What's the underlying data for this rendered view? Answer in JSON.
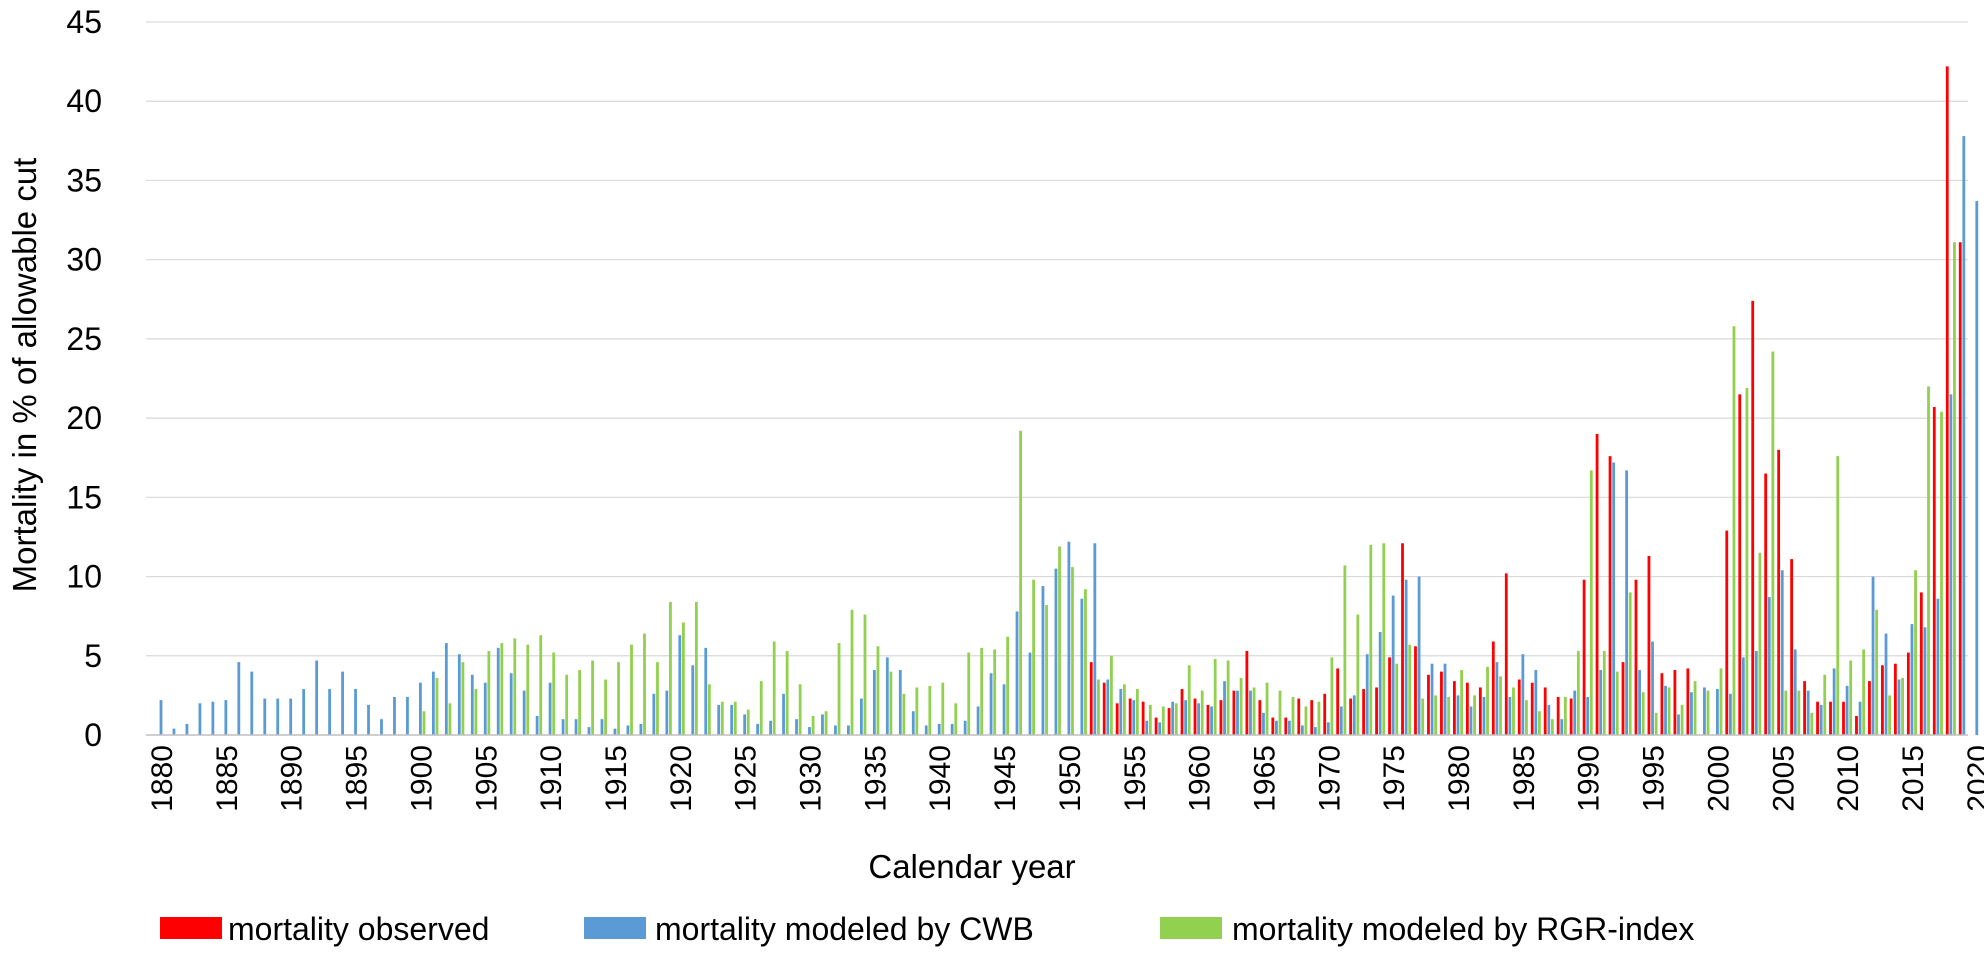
{
  "chart_data": {
    "type": "bar",
    "title": "",
    "xlabel": "Calendar year",
    "ylabel": "Mortality in % of allowable cut",
    "ylim": [
      0,
      45
    ],
    "yticks": [
      "0",
      "5",
      "10",
      "15",
      "20",
      "25",
      "30",
      "35",
      "40",
      "45"
    ],
    "xtick_labels": [
      "1880",
      "1885",
      "1890",
      "1895",
      "1900",
      "1905",
      "1910",
      "1915",
      "1920",
      "1925",
      "1930",
      "1935",
      "1940",
      "1945",
      "1950",
      "1955",
      "1960",
      "1965",
      "1970",
      "1975",
      "1980",
      "1985",
      "1990",
      "1995",
      "2000",
      "2005",
      "2010",
      "2015",
      "2020"
    ],
    "grid": "horizontal",
    "legend_position": "bottom",
    "years": [
      1880,
      1881,
      1882,
      1883,
      1884,
      1885,
      1886,
      1887,
      1888,
      1889,
      1890,
      1891,
      1892,
      1893,
      1894,
      1895,
      1896,
      1897,
      1898,
      1899,
      1900,
      1901,
      1902,
      1903,
      1904,
      1905,
      1906,
      1907,
      1908,
      1909,
      1910,
      1911,
      1912,
      1913,
      1914,
      1915,
      1916,
      1917,
      1918,
      1919,
      1920,
      1921,
      1922,
      1923,
      1924,
      1925,
      1926,
      1927,
      1928,
      1929,
      1930,
      1931,
      1932,
      1933,
      1934,
      1935,
      1936,
      1937,
      1938,
      1939,
      1940,
      1941,
      1942,
      1943,
      1944,
      1945,
      1946,
      1947,
      1948,
      1949,
      1950,
      1951,
      1952,
      1953,
      1954,
      1955,
      1956,
      1957,
      1958,
      1959,
      1960,
      1961,
      1962,
      1963,
      1964,
      1965,
      1966,
      1967,
      1968,
      1969,
      1970,
      1971,
      1972,
      1973,
      1974,
      1975,
      1976,
      1977,
      1978,
      1979,
      1980,
      1981,
      1982,
      1983,
      1984,
      1985,
      1986,
      1987,
      1988,
      1989,
      1990,
      1991,
      1992,
      1993,
      1994,
      1995,
      1996,
      1997,
      1998,
      1999,
      2000,
      2001,
      2002,
      2003,
      2004,
      2005,
      2006,
      2007,
      2008,
      2009,
      2010,
      2011,
      2012,
      2013,
      2014,
      2015,
      2016,
      2017,
      2018,
      2019,
      2020
    ],
    "series": [
      {
        "name": "mortality observed",
        "color": "#ff0000",
        "values": [
          null,
          null,
          null,
          null,
          null,
          null,
          null,
          null,
          null,
          null,
          null,
          null,
          null,
          null,
          null,
          null,
          null,
          null,
          null,
          null,
          null,
          null,
          null,
          null,
          null,
          null,
          null,
          null,
          null,
          null,
          null,
          null,
          null,
          null,
          null,
          null,
          null,
          null,
          null,
          null,
          null,
          null,
          null,
          null,
          null,
          null,
          null,
          null,
          null,
          null,
          null,
          null,
          null,
          null,
          null,
          null,
          null,
          null,
          null,
          null,
          null,
          null,
          null,
          null,
          null,
          null,
          null,
          null,
          null,
          null,
          null,
          null,
          4.6,
          3.3,
          2.0,
          2.3,
          2.1,
          1.1,
          1.7,
          2.9,
          2.3,
          1.9,
          2.2,
          2.8,
          5.3,
          2.2,
          1.1,
          1.1,
          2.3,
          2.2,
          2.6,
          4.2,
          2.3,
          2.9,
          3.0,
          4.9,
          12.1,
          5.6,
          3.8,
          4.0,
          3.4,
          3.3,
          3.0,
          5.9,
          10.2,
          3.5,
          3.3,
          3.0,
          2.4,
          2.3,
          9.8,
          19.0,
          17.6,
          4.6,
          9.8,
          11.3,
          3.9,
          4.1,
          4.2,
          null,
          null,
          12.9,
          21.5,
          27.4,
          16.5,
          18.0,
          11.1,
          3.4,
          2.1,
          2.1,
          2.1,
          1.2,
          3.4,
          4.4,
          4.5,
          5.2,
          9.0,
          20.7,
          42.2,
          31.1
        ]
      },
      {
        "name": "mortality modeled by CWB",
        "color": "#5b9bd5",
        "values": [
          2.2,
          0.4,
          0.7,
          2.0,
          2.1,
          2.2,
          4.6,
          4.0,
          2.3,
          2.3,
          2.3,
          2.9,
          4.7,
          2.9,
          4.0,
          2.9,
          1.9,
          1.0,
          2.4,
          2.4,
          3.3,
          4.0,
          5.8,
          5.1,
          3.8,
          3.3,
          5.5,
          3.9,
          2.8,
          1.2,
          3.3,
          1.0,
          1.0,
          0.5,
          1.0,
          0.4,
          0.6,
          0.7,
          2.6,
          2.8,
          6.3,
          4.4,
          5.5,
          1.9,
          1.9,
          1.3,
          0.7,
          0.9,
          2.6,
          1.0,
          0.5,
          1.3,
          0.6,
          0.6,
          2.3,
          4.1,
          4.9,
          4.1,
          1.5,
          0.6,
          0.7,
          0.7,
          0.9,
          1.8,
          3.9,
          3.2,
          7.8,
          5.2,
          9.4,
          10.5,
          12.2,
          8.6,
          12.1,
          3.5,
          2.9,
          2.2,
          0.9,
          0.8,
          2.1,
          2.2,
          2.0,
          1.8,
          3.4,
          2.8,
          2.8,
          1.4,
          0.9,
          0.9,
          0.6,
          0.5,
          0.8,
          1.8,
          2.5,
          5.1,
          6.5,
          8.8,
          9.8,
          10.0,
          4.5,
          4.5,
          2.5,
          1.8,
          2.4,
          4.6,
          2.4,
          5.1,
          4.1,
          1.9,
          1.0,
          2.8,
          2.4,
          4.1,
          17.2,
          16.7,
          4.1,
          5.9,
          3.1,
          1.3,
          2.7,
          3.0,
          2.9,
          2.6,
          4.9,
          5.3,
          8.7,
          10.4,
          5.4,
          2.8,
          1.9,
          4.2,
          3.1,
          2.1,
          10.0,
          6.4,
          3.5,
          7.0,
          6.8,
          8.6,
          21.5,
          37.8,
          33.7
        ]
      },
      {
        "name": "mortality modeled by RGR-index",
        "color": "#92d050",
        "values": [
          null,
          null,
          null,
          null,
          null,
          null,
          null,
          null,
          null,
          null,
          null,
          null,
          null,
          null,
          null,
          null,
          null,
          null,
          null,
          null,
          1.5,
          3.6,
          2.0,
          4.6,
          2.9,
          5.3,
          5.8,
          6.1,
          5.7,
          6.3,
          5.2,
          3.8,
          4.1,
          4.7,
          3.5,
          4.6,
          5.7,
          6.4,
          4.6,
          8.4,
          7.1,
          8.4,
          3.2,
          2.1,
          2.1,
          1.6,
          3.4,
          5.9,
          5.3,
          3.2,
          1.2,
          1.5,
          5.8,
          7.9,
          7.6,
          5.6,
          4.0,
          2.6,
          3.0,
          3.1,
          3.3,
          2.0,
          5.2,
          5.5,
          5.4,
          6.2,
          19.2,
          9.8,
          8.2,
          11.9,
          10.6,
          9.2,
          3.5,
          5.0,
          3.2,
          2.9,
          1.9,
          1.8,
          2.0,
          4.4,
          2.8,
          4.8,
          4.7,
          3.6,
          3.0,
          3.3,
          2.8,
          2.4,
          1.8,
          2.1,
          4.9,
          10.7,
          7.6,
          12.0,
          12.1,
          4.5,
          5.7,
          2.3,
          2.5,
          2.4,
          4.1,
          2.5,
          4.3,
          3.7,
          3.0,
          2.2,
          1.5,
          1.0,
          2.4,
          5.3,
          16.7,
          5.3,
          4.0,
          9.0,
          2.7,
          1.4,
          3.0,
          1.9,
          3.4,
          2.8,
          4.2,
          25.8,
          21.9,
          11.5,
          24.2,
          2.8,
          2.8,
          1.4,
          3.8,
          17.6,
          4.7,
          5.4,
          7.9,
          2.5,
          3.6,
          10.4,
          22.0,
          20.4,
          31.1
        ]
      }
    ]
  }
}
